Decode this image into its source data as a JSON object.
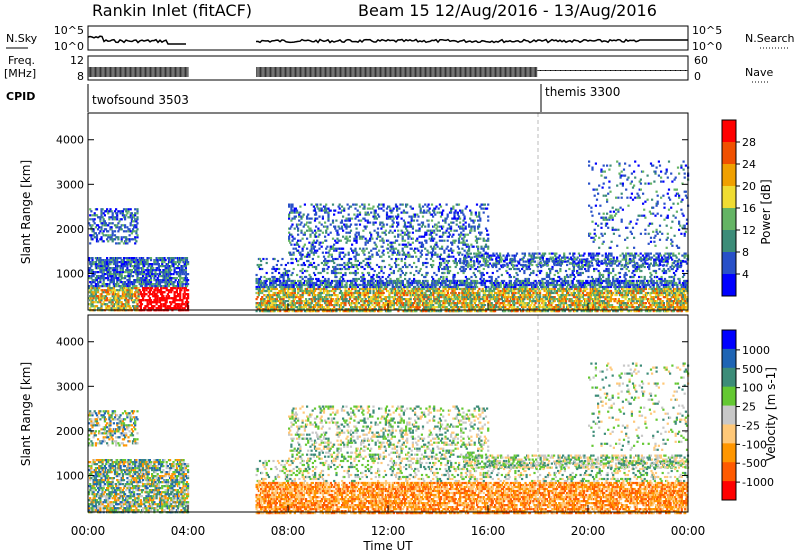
{
  "header": {
    "title": "Rankin Inlet (fitACF)",
    "subtitle": "Beam 15  12/Aug/2016 - 13/Aug/2016"
  },
  "nsky": {
    "label": "N.Sky",
    "ticks": [
      "10^5",
      "10^0"
    ],
    "right_label": "N.Search",
    "right_ticks": [
      "10^5",
      "10^0"
    ]
  },
  "freq": {
    "label_line1": "Freq.",
    "label_line2": "[MHz]",
    "ticks": [
      "12",
      "8"
    ],
    "right_label": "Nave",
    "right_ticks": [
      "60",
      "0"
    ]
  },
  "cpid": {
    "label": "CPID",
    "segments": [
      {
        "name": "twofsound 3503",
        "start_hr": 0
      },
      {
        "name": "themis 3300",
        "start_hr": 18
      }
    ]
  },
  "colors": {
    "power": [
      "#0000ff",
      "#2850c8",
      "#3c8c78",
      "#64b464",
      "#f0dc32",
      "#f0a000",
      "#f05000",
      "#ff0000"
    ],
    "velocity": [
      "#ff0000",
      "#ff5a00",
      "#ff9600",
      "#ffc878",
      "#c8c8c8",
      "#64c832",
      "#3c8c78",
      "#1e64b4",
      "#0000ff"
    ]
  },
  "chart_data": [
    {
      "type": "heatmap",
      "name": "power-panel",
      "ylabel": "Slant Range [km]",
      "yticks": [
        1000,
        2000,
        3000,
        4000
      ],
      "ylim": [
        180,
        4600
      ],
      "xlim_hr": [
        0,
        24
      ],
      "colorbar_label": "Power [dB]",
      "colorbar_ticks": [
        "4",
        "8",
        "12",
        "16",
        "20",
        "24",
        "28"
      ],
      "data_gaps_hr": [
        [
          4,
          6.7
        ]
      ]
    },
    {
      "type": "heatmap",
      "name": "velocity-panel",
      "ylabel": "Slant Range [km]",
      "yticks": [
        1000,
        2000,
        3000,
        4000
      ],
      "ylim": [
        180,
        4600
      ],
      "xlim_hr": [
        0,
        24
      ],
      "xticks": [
        "00:00",
        "04:00",
        "08:00",
        "12:00",
        "16:00",
        "20:00",
        "00:00"
      ],
      "xlabel": "Time UT",
      "colorbar_label": "Velocity [m s-1]",
      "colorbar_ticks": [
        "1000",
        "500",
        "100",
        "25",
        "-25",
        "-100",
        "-500",
        "-1000"
      ],
      "data_gaps_hr": [
        [
          4,
          6.7
        ]
      ]
    }
  ]
}
